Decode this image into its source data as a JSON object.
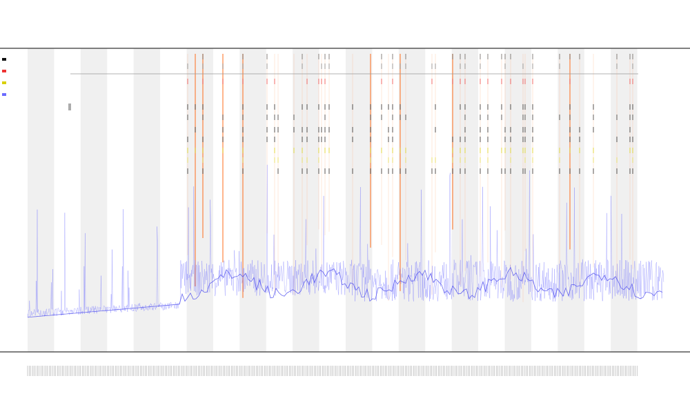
{
  "chart_data": {
    "type": "line",
    "title": "",
    "subtitle_1": "",
    "subtitle_2": "",
    "xlabel": "",
    "ylabel": "",
    "grid": false,
    "legend_position": "top-left",
    "shaded_bands": 12,
    "x_range": [
      0,
      1000
    ],
    "ylim": [
      0,
      100
    ],
    "series": [
      {
        "name": "",
        "color": "#6b6bff",
        "style": "dense-line",
        "segments": [
          {
            "x_start": 0,
            "x_end": 240,
            "baseline": 4,
            "noise": 3
          },
          {
            "x_start": 240,
            "x_end": 500,
            "baseline": 12,
            "noise": 14
          },
          {
            "x_start": 500,
            "x_end": 1000,
            "baseline": 10,
            "noise": 16
          }
        ]
      },
      {
        "name": "",
        "color": "#ff7f3f",
        "style": "vertical-lines"
      },
      {
        "name": "",
        "color": "#d9d000",
        "style": "tick-marks"
      },
      {
        "name": "",
        "color": "#111111",
        "style": "tick-marks"
      },
      {
        "name": "",
        "color": "#ee3333",
        "style": "tick-marks"
      }
    ]
  }
}
